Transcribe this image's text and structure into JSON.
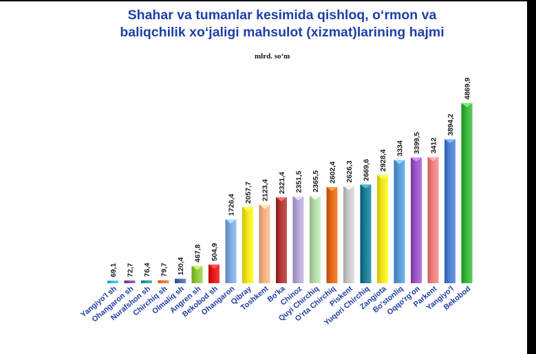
{
  "title": {
    "line1": "Shahar va tumanlar kesimida qishloq, o‘rmon va",
    "line2": "baliqchilik xo‘jaligi mahsulot (xizmat)larining hajmi"
  },
  "unit": "mlrd. so‘m",
  "chart_data": {
    "type": "bar",
    "title": "Shahar va tumanlar kesimida qishloq, o‘rmon va baliqchilik xo‘jaligi mahsulot (xizmat)larining hajmi",
    "ylabel": "mlrd. so‘m",
    "xlabel": "",
    "categories": [
      "Yangiyo'l sh",
      "Ohangaron sh",
      "Nurafshon sh",
      "Chirchiq sh",
      "Olmaliq sh",
      "Angren sh",
      "Bekobod sh",
      "Ohangaron",
      "Qibray",
      "Toshkent",
      "Bo'ka",
      "Chinoz",
      "Quyi Chirchiq",
      "O'rta Chirchiq",
      "Piskent",
      "Yuqori Chirchiq",
      "Zangiota",
      "Bo'stonliq",
      "Oqqo'rg'on",
      "Parkent",
      "Yangiyo'l",
      "Bekobod"
    ],
    "values": [
      69.1,
      72.7,
      76.4,
      79.7,
      120.4,
      467.8,
      504.9,
      1726.4,
      2057.7,
      2123.4,
      2321.4,
      2351.5,
      2365.5,
      2602.4,
      2626.3,
      2669.6,
      2928.4,
      3334,
      3399.5,
      3412,
      3894.2,
      4869.9
    ],
    "value_labels": [
      "69,1",
      "72,7",
      "76,4",
      "79,7",
      "120,4",
      "467,8",
      "504,9",
      "1726,4",
      "2057,7",
      "2123,4",
      "2321,4",
      "2351,5",
      "2365,5",
      "2602,4",
      "2626,3",
      "2669,6",
      "2928,4",
      "3334",
      "3399,5",
      "3412",
      "3894,2",
      "4869,9"
    ],
    "colors": [
      "#33b6e6",
      "#7a4fa0",
      "#2a9fa4",
      "#e8782a",
      "#4a6aa8",
      "#8ec63f",
      "#e31c1c",
      "#7fa9dd",
      "#f2e51a",
      "#f4b183",
      "#b03a3a",
      "#b4a7d6",
      "#b7d9a8",
      "#e06c1c",
      "#c8c8c8",
      "#1f7f96",
      "#f2e51a",
      "#5b9bd5",
      "#9b59c6",
      "#f08080",
      "#4f81d0",
      "#3bb53b"
    ],
    "ylim": [
      0,
      5000
    ],
    "grid": false,
    "legend": "none"
  }
}
